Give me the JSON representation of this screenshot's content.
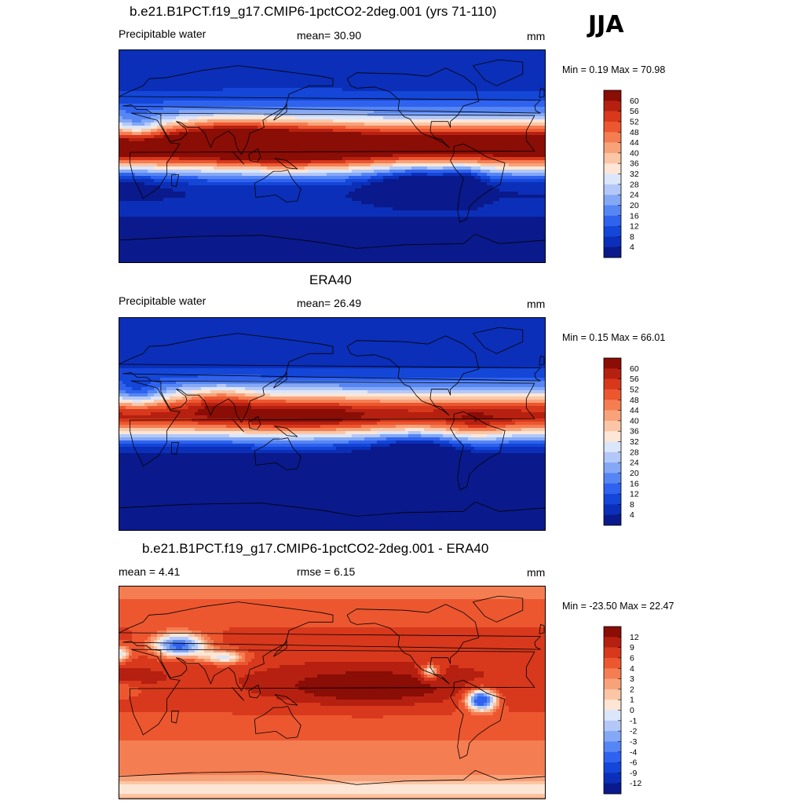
{
  "season": "JJA",
  "palettes": {
    "abs": [
      "#0a1a8c",
      "#0b2fb8",
      "#1446d8",
      "#2f62ee",
      "#5686f4",
      "#84a8f6",
      "#b3c8f8",
      "#dce6fb",
      "#fde6d6",
      "#fbc6a6",
      "#f8a27a",
      "#f57d52",
      "#ec5730",
      "#d8381c",
      "#b52010",
      "#8a0d06"
    ],
    "diff": [
      "#0a1a8c",
      "#0b2fb8",
      "#1446d8",
      "#2f62ee",
      "#5686f4",
      "#84a8f6",
      "#b3c8f8",
      "#dce6fb",
      "#fde6d6",
      "#fbc6a6",
      "#f8a27a",
      "#f57d52",
      "#ec5730",
      "#d8381c",
      "#b52010",
      "#8a0d06"
    ]
  },
  "panels": [
    {
      "title": "b.e21.B1PCT.f19_g17.CMIP6-1pctCO2-2deg.001 (yrs 71-110)",
      "left_label": "Precipitable water",
      "center_label": "mean=  30.90",
      "right_label": "mm",
      "minmax": "Min =   0.19 Max =  70.98",
      "colorbar_levels": [
        "60",
        "56",
        "52",
        "48",
        "44",
        "40",
        "36",
        "32",
        "28",
        "24",
        "20",
        "16",
        "12",
        "8",
        "4"
      ]
    },
    {
      "title": "ERA40",
      "left_label": "Precipitable water",
      "center_label": "mean=  26.49",
      "right_label": "mm",
      "minmax": "Min =   0.15 Max =  66.01",
      "colorbar_levels": [
        "60",
        "56",
        "52",
        "48",
        "44",
        "40",
        "36",
        "32",
        "28",
        "24",
        "20",
        "16",
        "12",
        "8",
        "4"
      ]
    },
    {
      "title": "b.e21.B1PCT.f19_g17.CMIP6-1pctCO2-2deg.001 - ERA40",
      "left_label": "mean =   4.41",
      "center_label": "rmse =   6.15",
      "right_label": "mm",
      "minmax": "Min = -23.50 Max =  22.47",
      "colorbar_levels": [
        "12",
        "9",
        "6",
        "4",
        "3",
        "2",
        "1",
        "0",
        "-1",
        "-2",
        "-3",
        "-4",
        "-6",
        "-9",
        "-12"
      ]
    }
  ],
  "chart_data": [
    {
      "type": "heatmap",
      "title": "b.e21.B1PCT.f19_g17.CMIP6-1pctCO2-2deg.001 (yrs 71-110)",
      "field": "Precipitable water",
      "units": "mm",
      "mean": 30.9,
      "min": 0.19,
      "max": 70.98,
      "contour_levels": [
        4,
        8,
        12,
        16,
        20,
        24,
        28,
        32,
        36,
        40,
        44,
        48,
        52,
        56,
        60
      ]
    },
    {
      "type": "heatmap",
      "title": "ERA40",
      "field": "Precipitable water",
      "units": "mm",
      "mean": 26.49,
      "min": 0.15,
      "max": 66.01,
      "contour_levels": [
        4,
        8,
        12,
        16,
        20,
        24,
        28,
        32,
        36,
        40,
        44,
        48,
        52,
        56,
        60
      ]
    },
    {
      "type": "heatmap",
      "title": "b.e21.B1PCT.f19_g17.CMIP6-1pctCO2-2deg.001 - ERA40",
      "units": "mm",
      "mean": 4.41,
      "rmse": 6.15,
      "min": -23.5,
      "max": 22.47,
      "contour_levels": [
        -12,
        -9,
        -6,
        -4,
        -3,
        -2,
        -1,
        0,
        1,
        2,
        3,
        4,
        6,
        9,
        12
      ]
    }
  ]
}
